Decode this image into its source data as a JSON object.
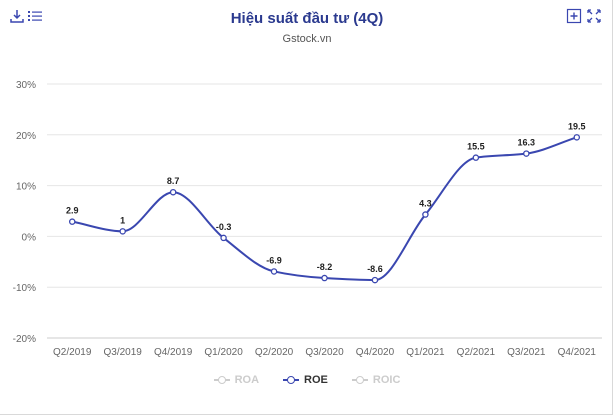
{
  "header": {
    "title": "Hiệu suất đầu tư (4Q)",
    "subtitle": "Gstock.vn",
    "download_icon": "download-icon",
    "menu_icon": "hamburger-menu-icon",
    "add_icon": "plus-box-icon",
    "fullscreen_icon": "fullscreen-icon"
  },
  "colors": {
    "roe": "#3a47b0",
    "disabled": "#cccccc",
    "title": "#2b3a8f",
    "grid": "#e6e6e6"
  },
  "legend": [
    {
      "label": "ROA",
      "active": false
    },
    {
      "label": "ROE",
      "active": true
    },
    {
      "label": "ROIC",
      "active": false
    }
  ],
  "chart_data": {
    "type": "line",
    "title": "Hiệu suất đầu tư (4Q)",
    "subtitle": "Gstock.vn",
    "categories": [
      "Q2/2019",
      "Q3/2019",
      "Q4/2019",
      "Q1/2020",
      "Q2/2020",
      "Q3/2020",
      "Q4/2020",
      "Q1/2021",
      "Q2/2021",
      "Q3/2021",
      "Q4/2021"
    ],
    "series": [
      {
        "name": "ROE",
        "values": [
          2.9,
          1,
          8.7,
          -0.3,
          -6.9,
          -8.2,
          -8.6,
          4.3,
          15.5,
          16.3,
          19.5
        ],
        "labels": [
          "2.9",
          "1",
          "8.7",
          "-0.3",
          "-6.9",
          "-8.2",
          "-8.6",
          "4.3",
          "15.5",
          "16.3",
          "19.5"
        ]
      }
    ],
    "yticks": [
      30,
      20,
      10,
      0,
      -10,
      -20
    ],
    "ytick_labels": [
      "30%",
      "20%",
      "10%",
      "0%",
      "-10%",
      "-20%"
    ],
    "ylim": [
      -20,
      30
    ],
    "grid": true,
    "legend_position": "bottom-center",
    "smooth": true
  }
}
